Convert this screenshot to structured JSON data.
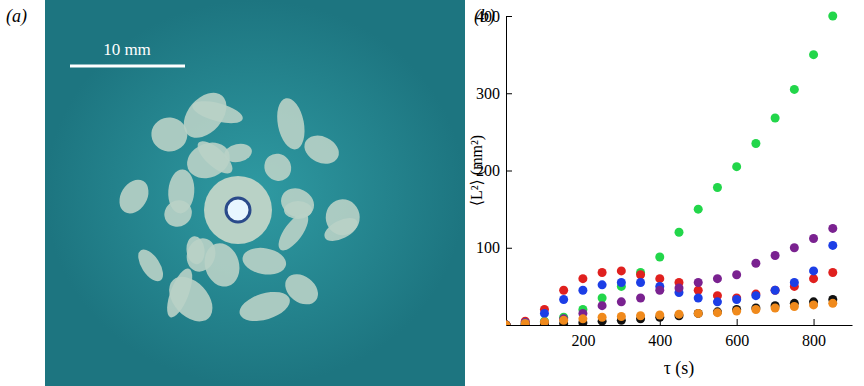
{
  "panel_labels": [
    "(a)",
    "(b)"
  ],
  "image_panel": {
    "scale_bar": "10 mm"
  },
  "chart_data": {
    "type": "scatter",
    "x_label": "τ (s)",
    "y_label": "⟨L²⟩ (mm²)",
    "x": [
      0,
      50,
      100,
      150,
      200,
      250,
      300,
      350,
      400,
      450,
      500,
      550,
      600,
      650,
      700,
      750,
      800,
      850
    ],
    "xlim": [
      0,
      900
    ],
    "xticks": [
      200,
      400,
      600,
      800
    ],
    "ylim": [
      0,
      400
    ],
    "yticks": [
      100,
      200,
      300,
      400
    ],
    "marker": "circle",
    "series": [
      {
        "color": "#22d64a",
        "values": [
          0,
          2,
          5,
          10,
          20,
          35,
          50,
          68,
          88,
          120,
          150,
          178,
          205,
          235,
          268,
          305,
          350,
          400
        ]
      },
      {
        "color": "#e0201e",
        "values": [
          0,
          5,
          20,
          45,
          60,
          68,
          70,
          65,
          60,
          55,
          45,
          38,
          35,
          40,
          45,
          50,
          60,
          68
        ]
      },
      {
        "color": "#1c3ee6",
        "values": [
          0,
          3,
          15,
          33,
          45,
          52,
          55,
          55,
          50,
          42,
          35,
          30,
          33,
          38,
          45,
          55,
          70,
          103
        ]
      },
      {
        "color": "#7a2290",
        "values": [
          0,
          1,
          3,
          8,
          15,
          25,
          30,
          35,
          45,
          48,
          55,
          60,
          65,
          80,
          90,
          100,
          112,
          125
        ]
      },
      {
        "color": "#111111",
        "values": [
          0,
          0,
          1,
          2,
          3,
          5,
          6,
          8,
          10,
          12,
          15,
          17,
          20,
          22,
          25,
          28,
          30,
          33
        ]
      },
      {
        "color": "#f08a1c",
        "values": [
          0,
          2,
          4,
          6,
          8,
          10,
          11,
          12,
          13,
          14,
          15,
          16,
          18,
          20,
          22,
          24,
          26,
          28
        ]
      }
    ]
  }
}
